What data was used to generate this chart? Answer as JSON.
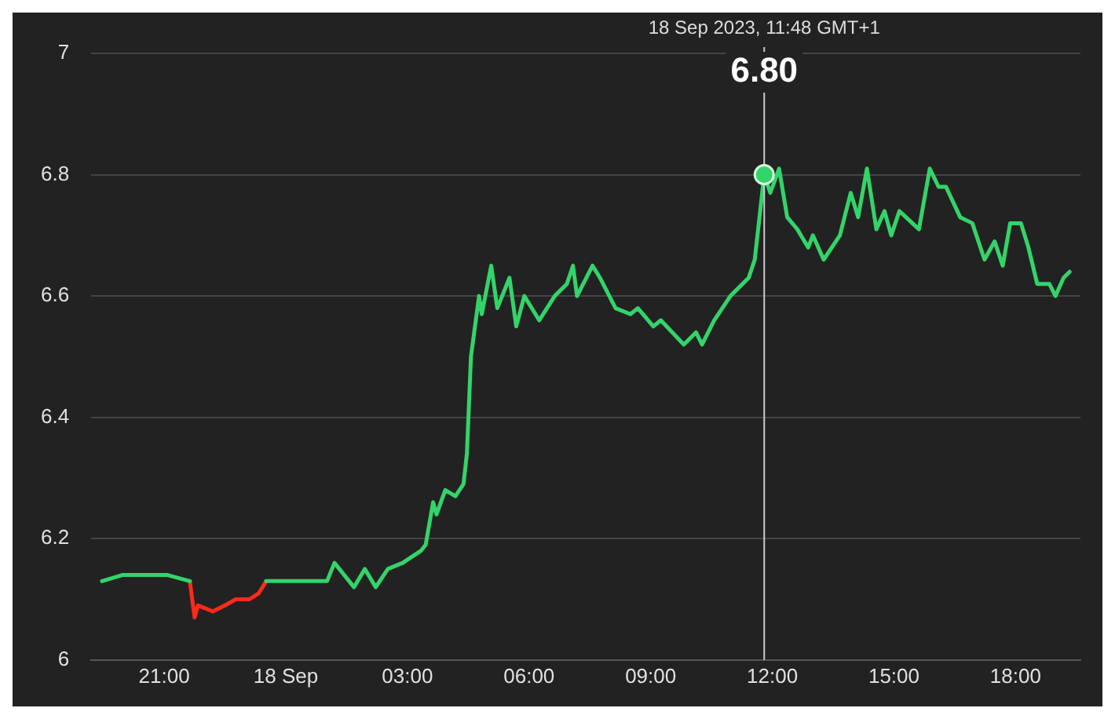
{
  "chart_data": {
    "type": "line",
    "xlim": [
      "2023-09-17T19:12",
      "2023-09-18T19:36"
    ],
    "ylim": [
      6,
      7
    ],
    "xticks": [
      {
        "value": "2023-09-17T21:00",
        "label": "21:00"
      },
      {
        "value": "2023-09-18T00:00",
        "label": "18 Sep"
      },
      {
        "value": "2023-09-18T03:00",
        "label": "03:00"
      },
      {
        "value": "2023-09-18T06:00",
        "label": "06:00"
      },
      {
        "value": "2023-09-18T09:00",
        "label": "09:00"
      },
      {
        "value": "2023-09-18T12:00",
        "label": "12:00"
      },
      {
        "value": "2023-09-18T15:00",
        "label": "15:00"
      },
      {
        "value": "2023-09-18T18:00",
        "label": "18:00"
      }
    ],
    "yticks": [
      6,
      6.2,
      6.4,
      6.6,
      6.8,
      7
    ],
    "grid": "y",
    "legend": false,
    "marker": "none",
    "line_style": "solid",
    "series": [
      {
        "type": "line",
        "color": "#33d46a",
        "x": [
          "2023-09-17T19:28",
          "2023-09-17T19:58",
          "2023-09-17T20:31",
          "2023-09-17T21:05",
          "2023-09-17T21:38",
          "2023-09-17T22:00",
          "2023-09-17T23:31",
          "2023-09-18T00:16",
          "2023-09-18T01:01",
          "2023-09-18T01:12",
          "2023-09-18T01:41",
          "2023-09-18T01:57",
          "2023-09-18T02:13",
          "2023-09-18T02:31",
          "2023-09-18T02:53",
          "2023-09-18T03:20",
          "2023-09-18T03:27",
          "2023-09-18T03:38",
          "2023-09-18T03:43",
          "2023-09-18T03:56",
          "2023-09-18T04:11",
          "2023-09-18T04:23",
          "2023-09-18T04:28",
          "2023-09-18T04:34",
          "2023-09-18T04:46",
          "2023-09-18T04:50",
          "2023-09-18T05:04",
          "2023-09-18T05:13",
          "2023-09-18T05:31",
          "2023-09-18T05:41",
          "2023-09-18T05:53",
          "2023-09-18T06:15",
          "2023-09-18T06:38",
          "2023-09-18T06:56",
          "2023-09-18T07:05",
          "2023-09-18T07:11",
          "2023-09-18T07:34",
          "2023-09-18T07:45",
          "2023-09-18T08:08",
          "2023-09-18T08:30",
          "2023-09-18T08:41",
          "2023-09-18T09:04",
          "2023-09-18T09:15",
          "2023-09-18T09:49",
          "2023-09-18T10:07",
          "2023-09-18T10:16",
          "2023-09-18T10:34",
          "2023-09-18T10:58",
          "2023-09-18T11:07",
          "2023-09-18T11:25",
          "2023-09-18T11:34",
          "2023-09-18T11:48",
          "2023-09-18T11:57",
          "2023-09-18T12:10",
          "2023-09-18T12:22",
          "2023-09-18T12:37",
          "2023-09-18T12:53",
          "2023-09-18T13:00",
          "2023-09-18T13:16",
          "2023-09-18T13:40",
          "2023-09-18T13:56",
          "2023-09-18T14:07",
          "2023-09-18T14:20",
          "2023-09-18T14:34",
          "2023-09-18T14:46",
          "2023-09-18T14:56",
          "2023-09-18T15:08",
          "2023-09-18T15:37",
          "2023-09-18T15:53",
          "2023-09-18T16:06",
          "2023-09-18T16:17",
          "2023-09-18T16:38",
          "2023-09-18T16:56",
          "2023-09-18T17:14",
          "2023-09-18T17:29",
          "2023-09-18T17:41",
          "2023-09-18T17:52",
          "2023-09-18T18:08",
          "2023-09-18T18:19",
          "2023-09-18T18:32",
          "2023-09-18T18:50",
          "2023-09-18T18:59",
          "2023-09-18T19:11",
          "2023-09-18T19:20"
        ],
        "values": [
          6.13,
          6.14,
          6.14,
          6.14,
          6.13,
          null,
          6.13,
          6.13,
          6.13,
          6.16,
          6.12,
          6.15,
          6.12,
          6.15,
          6.16,
          6.18,
          6.19,
          6.26,
          6.24,
          6.28,
          6.27,
          6.29,
          6.34,
          6.5,
          6.6,
          6.57,
          6.65,
          6.58,
          6.63,
          6.55,
          6.6,
          6.56,
          6.6,
          6.62,
          6.65,
          6.6,
          6.65,
          6.63,
          6.58,
          6.57,
          6.58,
          6.55,
          6.56,
          6.52,
          6.54,
          6.52,
          6.56,
          6.6,
          6.61,
          6.63,
          6.66,
          6.8,
          6.77,
          6.81,
          6.73,
          6.71,
          6.68,
          6.7,
          6.66,
          6.7,
          6.77,
          6.73,
          6.81,
          6.71,
          6.74,
          6.7,
          6.74,
          6.71,
          6.81,
          6.78,
          6.78,
          6.73,
          6.72,
          6.66,
          6.69,
          6.65,
          6.72,
          6.72,
          6.68,
          6.62,
          6.62,
          6.6,
          6.63,
          6.64
        ]
      },
      {
        "type": "line",
        "color": "#ff2a1a",
        "x": [
          "2023-09-17T21:38",
          "2023-09-17T21:45",
          "2023-09-17T21:50",
          "2023-09-17T22:12",
          "2023-09-17T22:30",
          "2023-09-17T22:46",
          "2023-09-17T23:06",
          "2023-09-17T23:20",
          "2023-09-17T23:31"
        ],
        "values": [
          6.13,
          6.07,
          6.09,
          6.08,
          6.09,
          6.1,
          6.1,
          6.11,
          6.13
        ]
      }
    ],
    "ref_lines": [
      {
        "axis": "x",
        "value": "2023-09-18T11:48",
        "color": "#cccccc"
      }
    ],
    "annotations": [
      "18 Sep 2023, 11:48 GMT+1",
      {
        "text": "6.80",
        "x": "2023-09-18T11:48",
        "y": 6.8
      }
    ]
  }
}
